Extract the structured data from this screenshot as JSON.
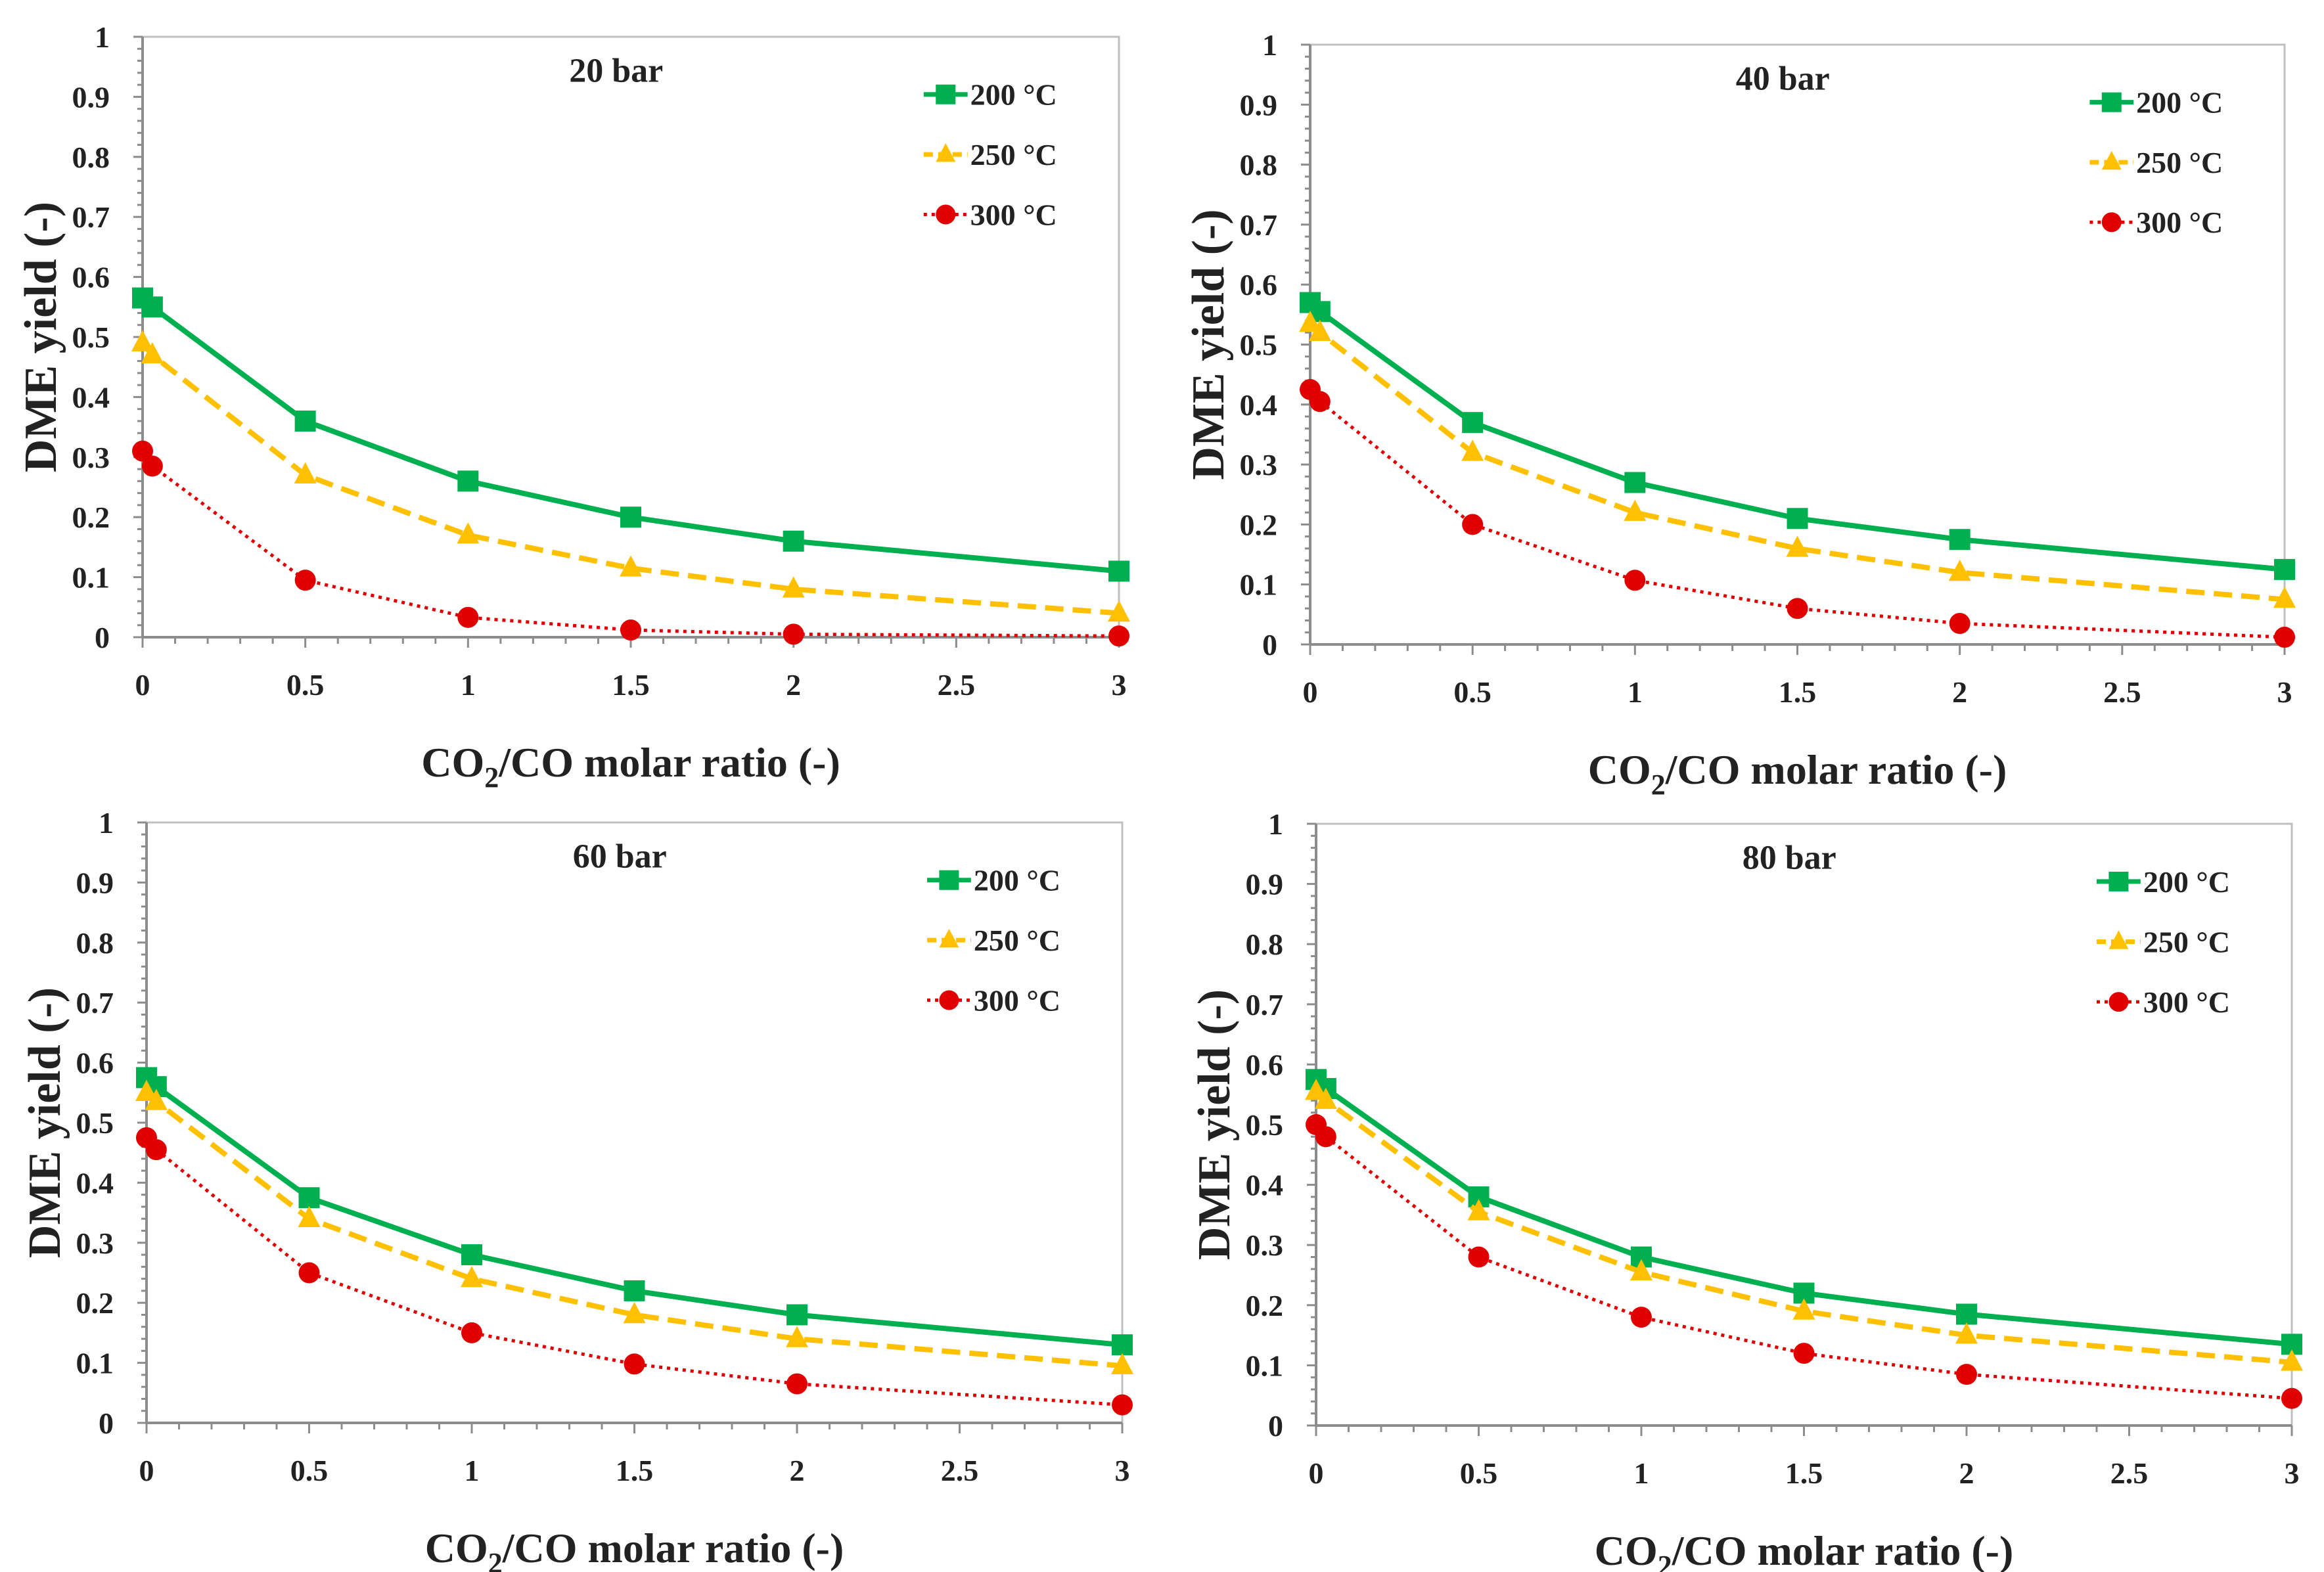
{
  "chart_data": [
    {
      "type": "line",
      "title": "20 bar",
      "xlabel": {
        "pre": "CO",
        "sub": "2",
        "post": "/CO molar ratio (-)"
      },
      "ylabel": "DME yield (-)",
      "xlim": [
        0,
        3
      ],
      "ylim": [
        0,
        1
      ],
      "xticks": [
        "0",
        "0.5",
        "1",
        "1.5",
        "2",
        "2.5",
        "3"
      ],
      "yticks": [
        "0",
        "0.1",
        "0.2",
        "0.3",
        "0.4",
        "0.5",
        "0.6",
        "0.7",
        "0.8",
        "0.9",
        "1"
      ],
      "x": [
        0,
        0.03,
        0.5,
        1,
        1.5,
        2,
        3
      ],
      "legend_position": "top-right",
      "series": [
        {
          "name": "200 °C",
          "color": "#00b050",
          "marker": "square",
          "line": "solid",
          "values": [
            0.565,
            0.55,
            0.36,
            0.26,
            0.2,
            0.16,
            0.11
          ]
        },
        {
          "name": "250 °C",
          "color": "#ffc000",
          "marker": "triangle",
          "line": "dashed",
          "values": [
            0.49,
            0.47,
            0.27,
            0.17,
            0.115,
            0.08,
            0.04
          ]
        },
        {
          "name": "300 °C",
          "color": "#e00000",
          "marker": "circle",
          "line": "dotted",
          "values": [
            0.31,
            0.285,
            0.095,
            0.033,
            0.012,
            0.005,
            0.002
          ]
        }
      ]
    },
    {
      "type": "line",
      "title": "40 bar",
      "xlabel": {
        "pre": "CO",
        "sub": "2",
        "post": "/CO molar ratio (-)"
      },
      "ylabel": "DME yield (-)",
      "xlim": [
        0,
        3
      ],
      "ylim": [
        0,
        1
      ],
      "xticks": [
        "0",
        "0.5",
        "1",
        "1.5",
        "2",
        "2.5",
        "3"
      ],
      "yticks": [
        "0",
        "0.1",
        "0.2",
        "0.3",
        "0.4",
        "0.5",
        "0.6",
        "0.7",
        "0.8",
        "0.9",
        "1"
      ],
      "x": [
        0,
        0.03,
        0.5,
        1,
        1.5,
        2,
        3
      ],
      "legend_position": "top-right",
      "series": [
        {
          "name": "200 °C",
          "color": "#00b050",
          "marker": "square",
          "line": "solid",
          "values": [
            0.57,
            0.555,
            0.37,
            0.27,
            0.21,
            0.175,
            0.125
          ]
        },
        {
          "name": "250 °C",
          "color": "#ffc000",
          "marker": "triangle",
          "line": "dashed",
          "values": [
            0.535,
            0.52,
            0.32,
            0.22,
            0.16,
            0.12,
            0.075
          ]
        },
        {
          "name": "300 °C",
          "color": "#e00000",
          "marker": "circle",
          "line": "dotted",
          "values": [
            0.425,
            0.405,
            0.2,
            0.107,
            0.06,
            0.035,
            0.012
          ]
        }
      ]
    },
    {
      "type": "line",
      "title": "60 bar",
      "xlabel": {
        "pre": "CO",
        "sub": "2",
        "post": "/CO molar ratio (-)"
      },
      "ylabel": "DME yield (-)",
      "xlim": [
        0,
        3
      ],
      "ylim": [
        0,
        1
      ],
      "xticks": [
        "0",
        "0.5",
        "1",
        "1.5",
        "2",
        "2.5",
        "3"
      ],
      "yticks": [
        "0",
        "0.1",
        "0.2",
        "0.3",
        "0.4",
        "0.5",
        "0.6",
        "0.7",
        "0.8",
        "0.9",
        "1"
      ],
      "x": [
        0,
        0.03,
        0.5,
        1,
        1.5,
        2,
        3
      ],
      "legend_position": "top-right",
      "series": [
        {
          "name": "200 °C",
          "color": "#00b050",
          "marker": "square",
          "line": "solid",
          "values": [
            0.575,
            0.56,
            0.375,
            0.28,
            0.22,
            0.18,
            0.13
          ]
        },
        {
          "name": "250 °C",
          "color": "#ffc000",
          "marker": "triangle",
          "line": "dashed",
          "values": [
            0.55,
            0.535,
            0.34,
            0.24,
            0.18,
            0.14,
            0.095
          ]
        },
        {
          "name": "300 °C",
          "color": "#e00000",
          "marker": "circle",
          "line": "dotted",
          "values": [
            0.475,
            0.455,
            0.25,
            0.15,
            0.098,
            0.065,
            0.03
          ]
        }
      ]
    },
    {
      "type": "line",
      "title": "80 bar",
      "xlabel": {
        "pre": "CO",
        "sub": "2",
        "post": "/CO molar ratio (-)"
      },
      "ylabel": "DME yield (-)",
      "xlim": [
        0,
        3
      ],
      "ylim": [
        0,
        1
      ],
      "xticks": [
        "0",
        "0.5",
        "1",
        "1.5",
        "2",
        "2.5",
        "3"
      ],
      "yticks": [
        "0",
        "0.1",
        "0.2",
        "0.3",
        "0.4",
        "0.5",
        "0.6",
        "0.7",
        "0.8",
        "0.9",
        "1"
      ],
      "x": [
        0,
        0.03,
        0.5,
        1,
        1.5,
        2,
        3
      ],
      "legend_position": "top-right",
      "series": [
        {
          "name": "200 °C",
          "color": "#00b050",
          "marker": "square",
          "line": "solid",
          "values": [
            0.575,
            0.56,
            0.38,
            0.28,
            0.22,
            0.185,
            0.135
          ]
        },
        {
          "name": "250 °C",
          "color": "#ffc000",
          "marker": "triangle",
          "line": "dashed",
          "values": [
            0.555,
            0.54,
            0.355,
            0.255,
            0.19,
            0.15,
            0.105
          ]
        },
        {
          "name": "300 °C",
          "color": "#e00000",
          "marker": "circle",
          "line": "dotted",
          "values": [
            0.5,
            0.48,
            0.28,
            0.18,
            0.12,
            0.085,
            0.045
          ]
        }
      ]
    }
  ]
}
